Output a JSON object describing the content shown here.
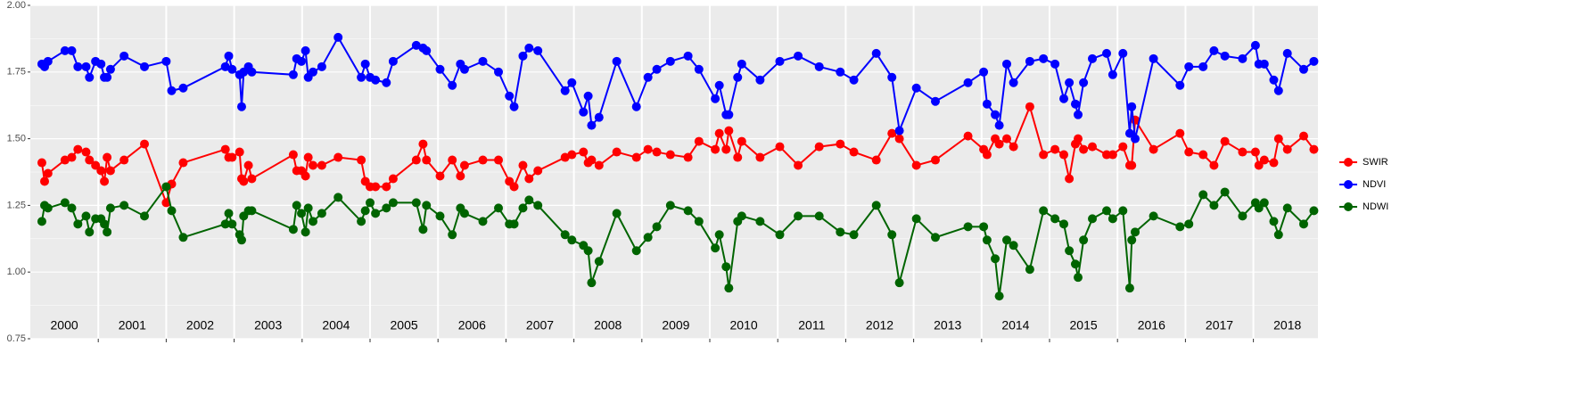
{
  "chart_data": {
    "type": "line",
    "x": [
      2000.17,
      2000.21,
      2000.26,
      2000.51,
      2000.61,
      2000.7,
      2000.82,
      2000.87,
      2000.96,
      2001.04,
      2001.09,
      2001.13,
      2001.18,
      2001.38,
      2001.68,
      2002.0,
      2002.08,
      2002.25,
      2002.87,
      2002.92,
      2002.97,
      2003.08,
      2003.11,
      2003.14,
      2003.21,
      2003.26,
      2003.87,
      2003.92,
      2003.99,
      2004.05,
      2004.09,
      2004.16,
      2004.29,
      2004.53,
      2004.87,
      2004.93,
      2005.0,
      2005.08,
      2005.24,
      2005.34,
      2005.68,
      2005.78,
      2005.83,
      2006.03,
      2006.21,
      2006.33,
      2006.39,
      2006.66,
      2006.89,
      2007.05,
      2007.12,
      2007.25,
      2007.34,
      2007.47,
      2007.87,
      2007.97,
      2008.14,
      2008.21,
      2008.26,
      2008.37,
      2008.63,
      2008.92,
      2009.09,
      2009.22,
      2009.42,
      2009.68,
      2009.84,
      2010.08,
      2010.14,
      2010.24,
      2010.28,
      2010.41,
      2010.47,
      2010.74,
      2011.03,
      2011.3,
      2011.61,
      2011.92,
      2012.12,
      2012.45,
      2012.68,
      2012.79,
      2013.04,
      2013.32,
      2013.8,
      2014.03,
      2014.08,
      2014.2,
      2014.26,
      2014.37,
      2014.47,
      2014.71,
      2014.91,
      2015.08,
      2015.21,
      2015.29,
      2015.38,
      2015.42,
      2015.5,
      2015.63,
      2015.84,
      2015.93,
      2016.08,
      2016.18,
      2016.21,
      2016.26,
      2016.53,
      2016.92,
      2017.05,
      2017.26,
      2017.42,
      2017.58,
      2017.84,
      2018.03,
      2018.08,
      2018.16,
      2018.3,
      2018.37,
      2018.5,
      2018.74,
      2018.89
    ],
    "series": [
      {
        "name": "SWIR",
        "color": "#ff0000",
        "values": [
          1.41,
          1.34,
          1.37,
          1.42,
          1.43,
          1.46,
          1.45,
          1.42,
          1.4,
          1.38,
          1.34,
          1.43,
          1.38,
          1.42,
          1.48,
          1.26,
          1.33,
          1.41,
          1.46,
          1.43,
          1.43,
          1.45,
          1.35,
          1.34,
          1.4,
          1.35,
          1.44,
          1.38,
          1.38,
          1.36,
          1.43,
          1.4,
          1.4,
          1.43,
          1.42,
          1.34,
          1.32,
          1.32,
          1.32,
          1.35,
          1.42,
          1.48,
          1.42,
          1.36,
          1.42,
          1.36,
          1.4,
          1.42,
          1.42,
          1.34,
          1.32,
          1.4,
          1.35,
          1.38,
          1.43,
          1.44,
          1.45,
          1.41,
          1.42,
          1.4,
          1.45,
          1.43,
          1.46,
          1.45,
          1.44,
          1.43,
          1.49,
          1.46,
          1.52,
          1.46,
          1.53,
          1.43,
          1.49,
          1.43,
          1.47,
          1.4,
          1.47,
          1.48,
          1.45,
          1.42,
          1.52,
          1.5,
          1.4,
          1.42,
          1.51,
          1.46,
          1.44,
          1.5,
          1.48,
          1.5,
          1.47,
          1.62,
          1.44,
          1.46,
          1.44,
          1.35,
          1.48,
          1.5,
          1.46,
          1.47,
          1.44,
          1.44,
          1.47,
          1.4,
          1.4,
          1.57,
          1.46,
          1.52,
          1.45,
          1.44,
          1.4,
          1.49,
          1.45,
          1.45,
          1.4,
          1.42,
          1.41,
          1.5,
          1.46,
          1.51,
          1.46
        ]
      },
      {
        "name": "NDVI",
        "color": "#0000ff",
        "values": [
          1.78,
          1.77,
          1.79,
          1.83,
          1.83,
          1.77,
          1.77,
          1.73,
          1.79,
          1.78,
          1.73,
          1.73,
          1.76,
          1.81,
          1.77,
          1.79,
          1.68,
          1.69,
          1.77,
          1.81,
          1.76,
          1.74,
          1.62,
          1.75,
          1.77,
          1.75,
          1.74,
          1.8,
          1.79,
          1.83,
          1.73,
          1.75,
          1.77,
          1.88,
          1.73,
          1.78,
          1.73,
          1.72,
          1.71,
          1.79,
          1.85,
          1.84,
          1.83,
          1.76,
          1.7,
          1.78,
          1.76,
          1.79,
          1.75,
          1.66,
          1.62,
          1.81,
          1.84,
          1.83,
          1.68,
          1.71,
          1.6,
          1.66,
          1.55,
          1.58,
          1.79,
          1.62,
          1.73,
          1.76,
          1.79,
          1.81,
          1.76,
          1.65,
          1.7,
          1.59,
          1.59,
          1.73,
          1.78,
          1.72,
          1.79,
          1.81,
          1.77,
          1.75,
          1.72,
          1.82,
          1.73,
          1.53,
          1.69,
          1.64,
          1.71,
          1.75,
          1.63,
          1.59,
          1.55,
          1.78,
          1.71,
          1.79,
          1.8,
          1.78,
          1.65,
          1.71,
          1.63,
          1.59,
          1.71,
          1.8,
          1.82,
          1.74,
          1.82,
          1.52,
          1.62,
          1.5,
          1.8,
          1.7,
          1.77,
          1.77,
          1.83,
          1.81,
          1.8,
          1.85,
          1.78,
          1.78,
          1.72,
          1.68,
          1.82,
          1.76,
          1.79
        ]
      },
      {
        "name": "NDWI",
        "color": "#006400",
        "values": [
          1.19,
          1.25,
          1.24,
          1.26,
          1.24,
          1.18,
          1.21,
          1.15,
          1.2,
          1.2,
          1.18,
          1.15,
          1.24,
          1.25,
          1.21,
          1.32,
          1.23,
          1.13,
          1.18,
          1.22,
          1.18,
          1.14,
          1.12,
          1.21,
          1.23,
          1.23,
          1.16,
          1.25,
          1.22,
          1.15,
          1.24,
          1.19,
          1.22,
          1.28,
          1.19,
          1.23,
          1.26,
          1.22,
          1.24,
          1.26,
          1.26,
          1.16,
          1.25,
          1.21,
          1.14,
          1.24,
          1.22,
          1.19,
          1.24,
          1.18,
          1.18,
          1.24,
          1.27,
          1.25,
          1.14,
          1.12,
          1.1,
          1.08,
          0.96,
          1.04,
          1.22,
          1.08,
          1.13,
          1.17,
          1.25,
          1.23,
          1.19,
          1.09,
          1.14,
          1.02,
          0.94,
          1.19,
          1.21,
          1.19,
          1.14,
          1.21,
          1.21,
          1.15,
          1.14,
          1.25,
          1.14,
          0.96,
          1.2,
          1.13,
          1.17,
          1.17,
          1.12,
          1.05,
          0.91,
          1.12,
          1.1,
          1.01,
          1.23,
          1.2,
          1.18,
          1.08,
          1.03,
          0.98,
          1.12,
          1.2,
          1.23,
          1.2,
          1.23,
          0.94,
          1.12,
          1.15,
          1.21,
          1.17,
          1.18,
          1.29,
          1.25,
          1.3,
          1.21,
          1.26,
          1.24,
          1.26,
          1.19,
          1.14,
          1.24,
          1.18,
          1.23
        ]
      }
    ],
    "xlim": [
      2000,
      2018.95
    ],
    "xticks": [
      {
        "value": 2000.5,
        "label": "2000"
      },
      {
        "value": 2001.5,
        "label": "2001"
      },
      {
        "value": 2002.5,
        "label": "2002"
      },
      {
        "value": 2003.5,
        "label": "2003"
      },
      {
        "value": 2004.5,
        "label": "2004"
      },
      {
        "value": 2005.5,
        "label": "2005"
      },
      {
        "value": 2006.5,
        "label": "2006"
      },
      {
        "value": 2007.5,
        "label": "2007"
      },
      {
        "value": 2008.5,
        "label": "2008"
      },
      {
        "value": 2009.5,
        "label": "2009"
      },
      {
        "value": 2010.5,
        "label": "2010"
      },
      {
        "value": 2011.5,
        "label": "2011"
      },
      {
        "value": 2012.5,
        "label": "2012"
      },
      {
        "value": 2013.5,
        "label": "2013"
      },
      {
        "value": 2014.5,
        "label": "2014"
      },
      {
        "value": 2015.5,
        "label": "2015"
      },
      {
        "value": 2016.5,
        "label": "2016"
      },
      {
        "value": 2017.5,
        "label": "2017"
      },
      {
        "value": 2018.5,
        "label": "2018"
      }
    ],
    "ylim": [
      0.75,
      2.0
    ],
    "yticks": [
      {
        "value": 0.75,
        "label": "0.75"
      },
      {
        "value": 1.0,
        "label": "1.00"
      },
      {
        "value": 1.25,
        "label": "1.25"
      },
      {
        "value": 1.5,
        "label": "1.50"
      },
      {
        "value": 1.75,
        "label": "1.75"
      },
      {
        "value": 2.0,
        "label": "2.00"
      }
    ],
    "grid": true,
    "legend": "right"
  }
}
